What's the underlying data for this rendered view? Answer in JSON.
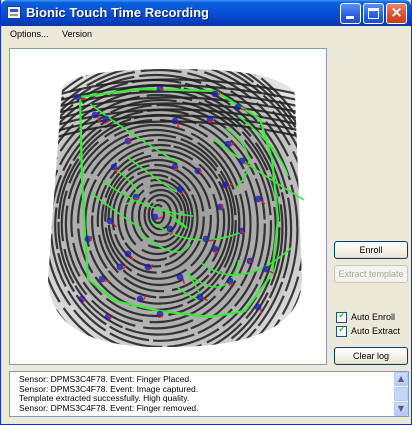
{
  "window": {
    "title": "Bionic Touch Time Recording"
  },
  "menu": {
    "items": [
      "Options...",
      "Version"
    ]
  },
  "buttons": {
    "enroll": "Enroll",
    "extract_template": "Extract template",
    "clear_log": "Clear log"
  },
  "checkboxes": [
    {
      "label": "Auto Enroll",
      "checked": true
    },
    {
      "label": "Auto Extract",
      "checked": true
    }
  ],
  "log": {
    "lines": [
      "Sensor: DPMS3C4F78. Event: Finger Placed.",
      "Sensor: DPMS3C4F78. Event: Image captured.",
      "Template extracted successfully. High quality.",
      "Sensor: DPMS3C4F78. Event: Finger removed."
    ]
  },
  "colors": {
    "minutia_ring": "#1e1eb4",
    "ridge_overlay": "#33ee33",
    "minutia_dir": "#e82020"
  }
}
